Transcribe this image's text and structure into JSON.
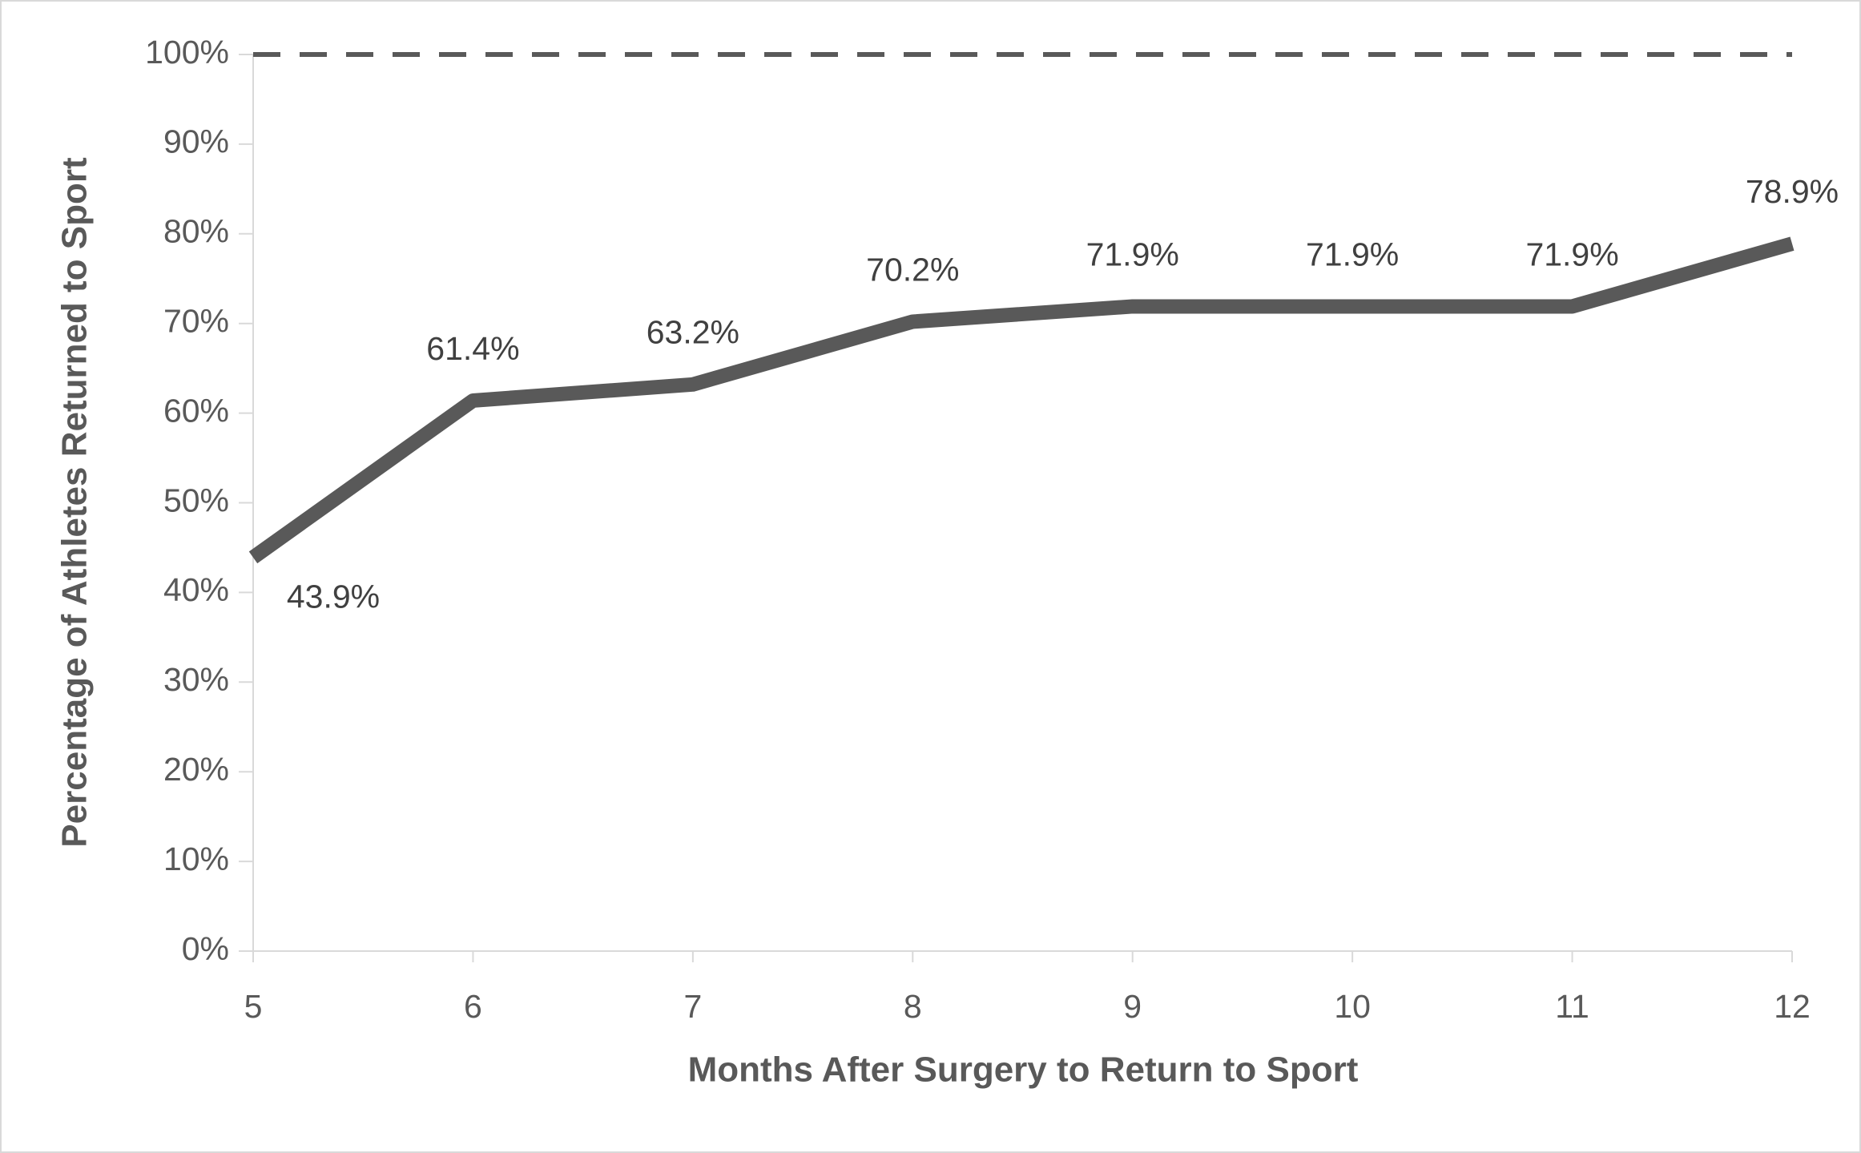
{
  "chart_data": {
    "type": "line",
    "x_label": "Months After Surgery to Return to Sport",
    "y_label": "Percentage of Athletes Returned to Sport",
    "x": [
      5,
      6,
      7,
      8,
      9,
      10,
      11,
      12
    ],
    "series": [
      {
        "color": "#595959",
        "values": [
          43.9,
          61.4,
          63.2,
          70.2,
          71.9,
          71.9,
          71.9,
          78.9
        ],
        "value_labels": [
          "43.9%",
          "61.4%",
          "63.2%",
          "70.2%",
          "71.9%",
          "71.9%",
          "71.9%",
          "78.9%"
        ]
      }
    ],
    "reference_line": 100,
    "xlim": [
      5,
      12
    ],
    "xticks": [
      5,
      6,
      7,
      8,
      9,
      10,
      11,
      12
    ],
    "ylim": [
      0,
      100
    ],
    "yticks": [
      {
        "value": 0,
        "label": "0%"
      },
      {
        "value": 10,
        "label": "10%"
      },
      {
        "value": 20,
        "label": "20%"
      },
      {
        "value": 30,
        "label": "30%"
      },
      {
        "value": 40,
        "label": "40%"
      },
      {
        "value": 50,
        "label": "50%"
      },
      {
        "value": 60,
        "label": "60%"
      },
      {
        "value": 70,
        "label": "70%"
      },
      {
        "value": 80,
        "label": "80%"
      },
      {
        "value": 90,
        "label": "90%"
      },
      {
        "value": 100,
        "label": "100%"
      }
    ]
  }
}
